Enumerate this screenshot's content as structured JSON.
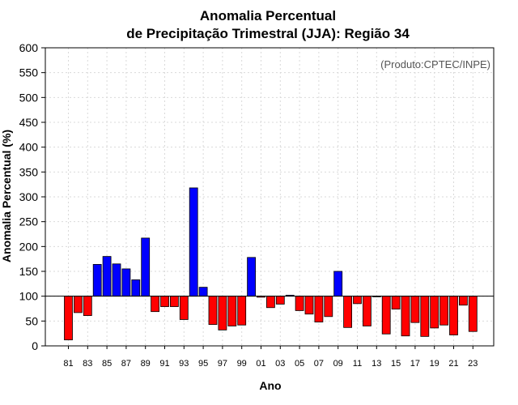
{
  "chart_data": {
    "type": "bar",
    "title_line1": "Anomalia Percentual",
    "title_line2": "de Precipitação Trimestral (JJA): Região 34",
    "xlabel": "Ano",
    "ylabel": "Anomalia Percentual (%)",
    "credit": "(Produto:CPTEC/INPE)",
    "ylim": [
      0,
      600
    ],
    "yticks": [
      0,
      50,
      100,
      150,
      200,
      250,
      300,
      350,
      400,
      450,
      500,
      550,
      600
    ],
    "baseline": 100,
    "colors": {
      "above": "#0000ff",
      "below": "#ff0000"
    },
    "categories": [
      "81",
      "82",
      "83",
      "84",
      "85",
      "86",
      "87",
      "88",
      "89",
      "90",
      "91",
      "92",
      "93",
      "94",
      "95",
      "96",
      "97",
      "98",
      "99",
      "00",
      "01",
      "02",
      "03",
      "04",
      "05",
      "06",
      "07",
      "08",
      "09",
      "10",
      "11",
      "12",
      "13",
      "14",
      "15",
      "16",
      "17",
      "18",
      "19",
      "20",
      "21",
      "22",
      "23"
    ],
    "xtick_labels": [
      "81",
      "83",
      "85",
      "87",
      "89",
      "91",
      "93",
      "95",
      "97",
      "99",
      "01",
      "03",
      "05",
      "07",
      "09",
      "11",
      "13",
      "15",
      "17",
      "19",
      "21",
      "23"
    ],
    "values": [
      12,
      67,
      61,
      164,
      180,
      165,
      155,
      133,
      217,
      69,
      79,
      79,
      53,
      318,
      118,
      43,
      32,
      40,
      42,
      178,
      98,
      77,
      84,
      102,
      71,
      64,
      48,
      59,
      150,
      37,
      85,
      40,
      99,
      24,
      74,
      20,
      47,
      19,
      36,
      42,
      22,
      82,
      29
    ]
  }
}
